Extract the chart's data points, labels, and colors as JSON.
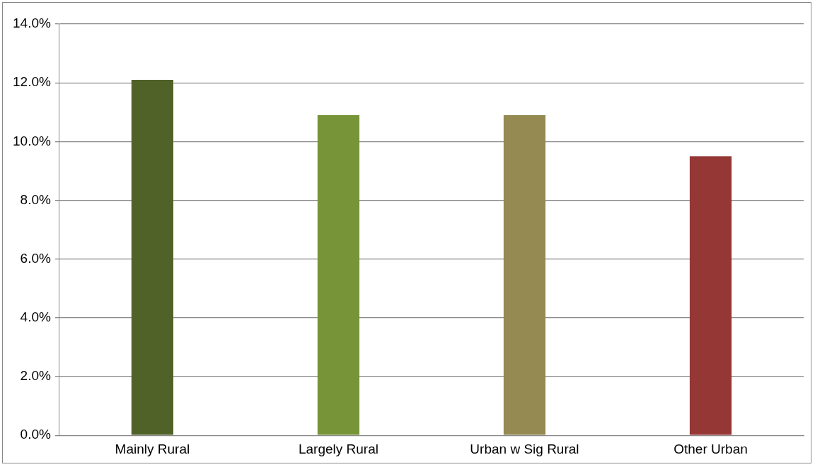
{
  "chart_data": {
    "type": "bar",
    "categories": [
      "Mainly Rural",
      "Largely Rural",
      "Urban w Sig Rural",
      "Other Urban"
    ],
    "values": [
      12.1,
      10.9,
      10.9,
      9.5
    ],
    "colors": [
      "#506228",
      "#779438",
      "#948a52",
      "#953735"
    ],
    "ylim": [
      0,
      14
    ],
    "yticks": [
      {
        "value": 0,
        "label": "0.0%"
      },
      {
        "value": 2,
        "label": "2.0%"
      },
      {
        "value": 4,
        "label": "4.0%"
      },
      {
        "value": 6,
        "label": "6.0%"
      },
      {
        "value": 8,
        "label": "8.0%"
      },
      {
        "value": 10,
        "label": "10.0%"
      },
      {
        "value": 12,
        "label": "12.0%"
      },
      {
        "value": 14,
        "label": "14.0%"
      }
    ],
    "grid": "y",
    "legend": false
  }
}
